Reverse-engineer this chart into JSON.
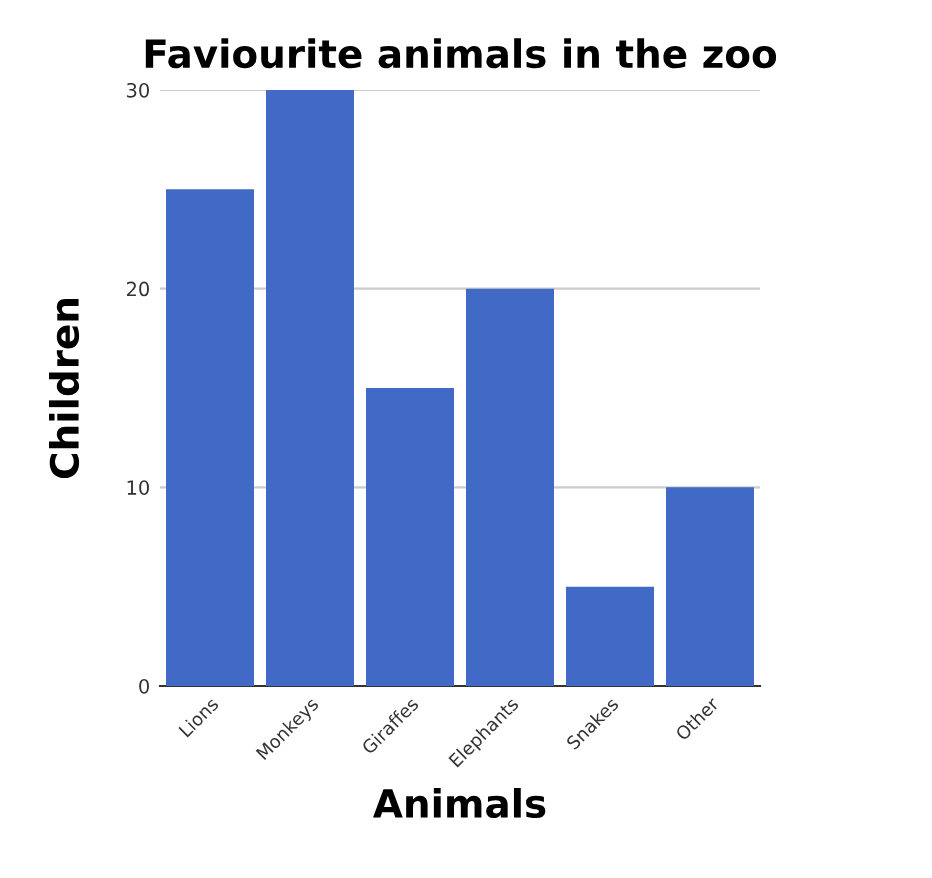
{
  "chart_data": {
    "type": "bar",
    "title": "Faviourite animals in the zoo",
    "xlabel": "Animals",
    "ylabel": "Children",
    "categories": [
      "Lions",
      "Monkeys",
      "Giraffes",
      "Elephants",
      "Snakes",
      "Other"
    ],
    "values": [
      25,
      30,
      15,
      20,
      5,
      10
    ],
    "color": "#4169c6",
    "ylim": [
      0,
      30
    ],
    "yticks": [
      0,
      10,
      20,
      30
    ],
    "grid": "y"
  }
}
